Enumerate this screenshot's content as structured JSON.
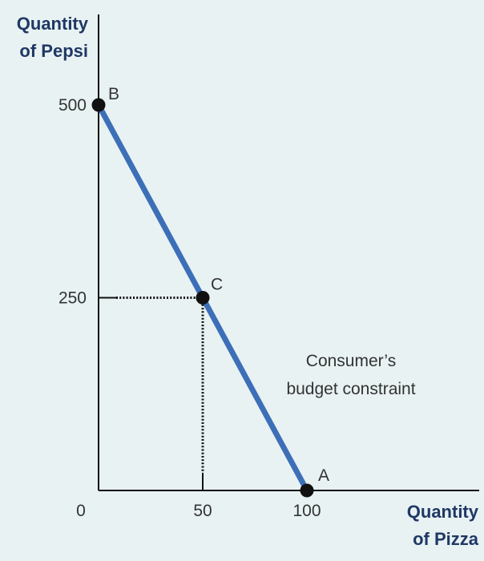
{
  "chart_data": {
    "type": "line",
    "title": "",
    "ylabel_lines": [
      "Quantity",
      "of Pepsi"
    ],
    "xlabel_lines": [
      "Quantity",
      "of Pizza"
    ],
    "xlim": [
      0,
      200
    ],
    "ylim": [
      0,
      500
    ],
    "x_ticks": [
      {
        "value": 0,
        "label": "0"
      },
      {
        "value": 50,
        "label": "50"
      },
      {
        "value": 100,
        "label": "100"
      }
    ],
    "y_ticks": [
      {
        "value": 250,
        "label": "250"
      },
      {
        "value": 500,
        "label": "500"
      }
    ],
    "series": [
      {
        "color": "#3d6fb8",
        "x": [
          0,
          100
        ],
        "y": [
          500,
          0
        ]
      }
    ],
    "points": [
      {
        "label": "B",
        "x": 0,
        "y": 500
      },
      {
        "label": "C",
        "x": 50,
        "y": 250
      },
      {
        "label": "A",
        "x": 100,
        "y": 0
      }
    ],
    "guides": [
      {
        "x": 50,
        "y": 250
      }
    ],
    "annotation_lines": [
      "Consumer’s",
      "budget constraint"
    ],
    "grid": false,
    "colors": {
      "background": "#e8f2f3",
      "line": "#3d6fb8",
      "axis": "#111111",
      "axis_title": "#1f3864",
      "point": "#111111"
    }
  }
}
